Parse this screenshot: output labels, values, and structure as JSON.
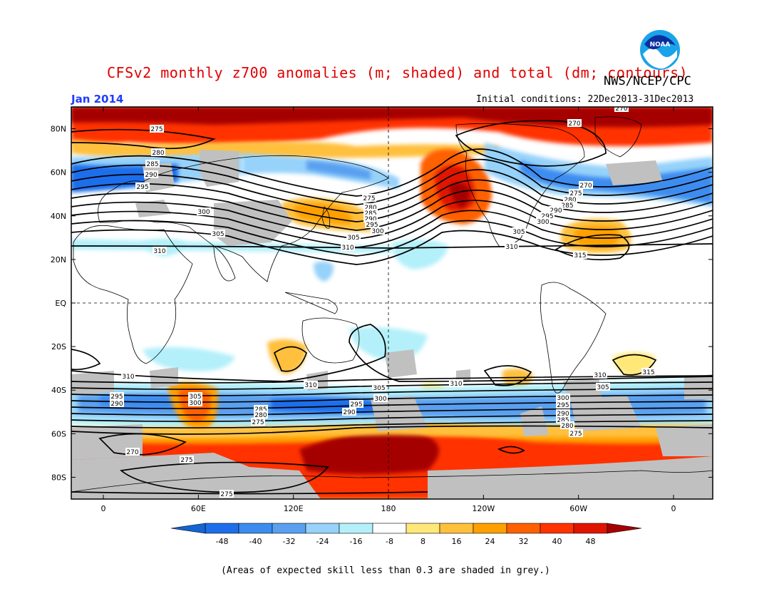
{
  "title": "CFSv2 monthly z700 anomalies (m; shaded) and total (dm; contours)",
  "agency": "NWS/NCEP/CPC",
  "month": "Jan 2014",
  "initial_conditions": "Initial conditions: 22Dec2013-31Dec2013",
  "footnote": "(Areas of expected skill less than 0.3 are shaded in grey.)",
  "logo_text": "NOAA",
  "axes": {
    "lat_labels": [
      "80N",
      "60N",
      "40N",
      "20N",
      "EQ",
      "20S",
      "40S",
      "60S",
      "80S"
    ],
    "lon_labels": [
      "0",
      "60E",
      "120E",
      "180",
      "120W",
      "60W",
      "0"
    ]
  },
  "colorbar": {
    "levels": [
      "-48",
      "-40",
      "-32",
      "-24",
      "-16",
      "-8",
      "8",
      "16",
      "24",
      "32",
      "40",
      "48"
    ],
    "colors": [
      "#1464d2",
      "#1e6eeb",
      "#3c8cf0",
      "#5aa0f0",
      "#96d2fa",
      "#b4f0fa",
      "#ffffff",
      "#ffe878",
      "#ffc03c",
      "#ffa000",
      "#ff6000",
      "#ff3200",
      "#e11400",
      "#a50000"
    ]
  },
  "contour_labels": [
    {
      "text": "275"
    },
    {
      "text": "280"
    },
    {
      "text": "285"
    },
    {
      "text": "290"
    },
    {
      "text": "295"
    },
    {
      "text": "300"
    },
    {
      "text": "305"
    },
    {
      "text": "310"
    },
    {
      "text": "315"
    },
    {
      "text": "270"
    }
  ]
}
